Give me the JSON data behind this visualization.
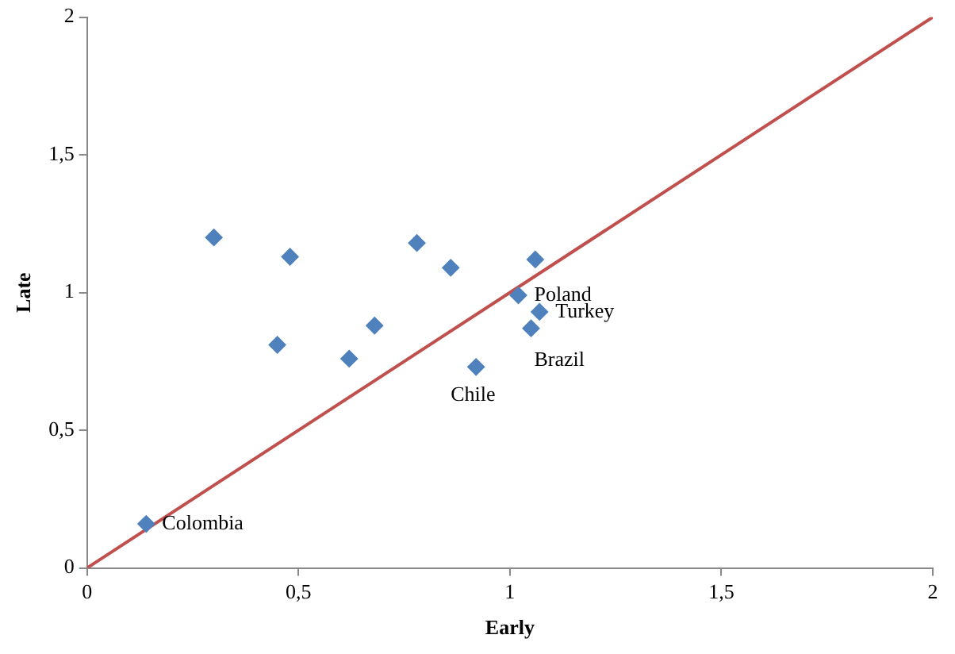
{
  "chart_data": {
    "type": "scatter",
    "xlabel": "Early",
    "ylabel": "Late",
    "xlim": [
      0,
      2
    ],
    "ylim": [
      0,
      2
    ],
    "xticks": [
      0,
      {
        "value": 0.5,
        "label": "0,5"
      },
      1,
      {
        "value": 1.5,
        "label": "1,5"
      },
      2
    ],
    "yticks": [
      0,
      {
        "value": 0.5,
        "label": "0,5"
      },
      1,
      {
        "value": 1.5,
        "label": "1,5"
      },
      2
    ],
    "grid": false,
    "legend": false,
    "marker": "diamond",
    "series": [
      {
        "type": "scatter",
        "color": "#4f81bd",
        "x": [
          0.14,
          0.3,
          0.48,
          0.45,
          0.68,
          0.62,
          0.78,
          0.86,
          0.92,
          1.06,
          1.02,
          1.07,
          1.05
        ],
        "values": [
          0.16,
          1.2,
          1.13,
          0.81,
          0.88,
          0.76,
          1.18,
          1.09,
          0.73,
          1.12,
          0.99,
          0.93,
          0.87
        ]
      },
      {
        "type": "line",
        "color": "#c0504d",
        "x": [
          0,
          2
        ],
        "values": [
          0,
          2
        ],
        "marker": "none",
        "line_style": "solid"
      }
    ],
    "annotations": [
      {
        "text": "Colombia",
        "x": 0.14,
        "y": 0.16
      },
      {
        "text": "Chile",
        "x": 0.92,
        "y": 0.73
      },
      {
        "text": "Poland",
        "x": 1.02,
        "y": 0.99
      },
      {
        "text": "Turkey",
        "x": 1.07,
        "y": 0.93
      },
      {
        "text": "Brazil",
        "x": 1.05,
        "y": 0.87
      }
    ]
  }
}
